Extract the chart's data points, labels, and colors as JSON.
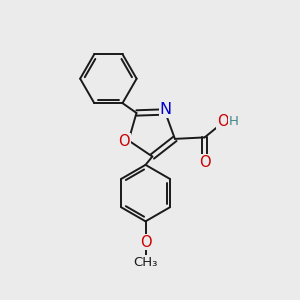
{
  "bg_color": "#ebebeb",
  "bond_color": "#1a1a1a",
  "bond_width": 1.4,
  "atom_colors": {
    "O": "#cc0000",
    "N": "#0000cc",
    "C": "#1a1a1a",
    "H": "#555555"
  },
  "font_size": 9.5
}
